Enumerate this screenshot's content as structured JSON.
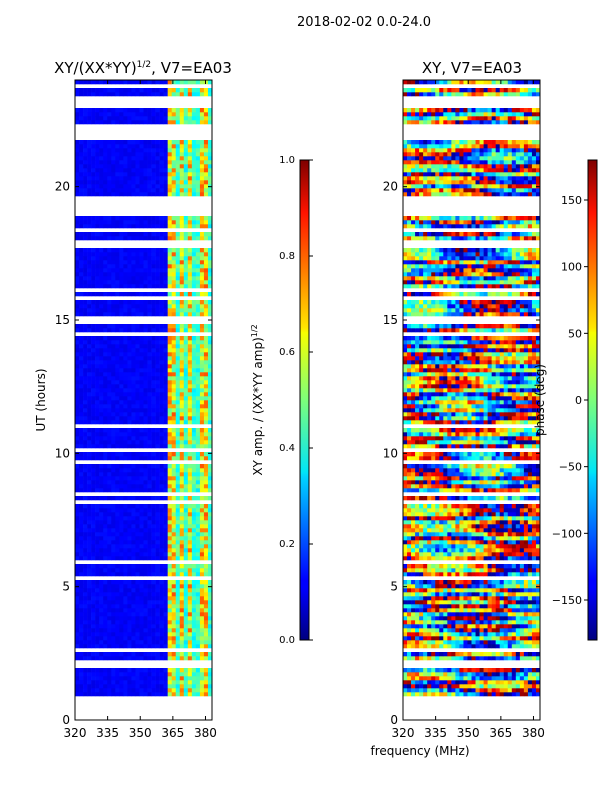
{
  "figure": {
    "suptitle": "2018-02-02 0.0-24.0",
    "xlabel": "frequency (MHz)"
  },
  "chart_data": [
    {
      "type": "heatmap",
      "title": "XY/(XX*YY)",
      "title_sup": "1/2",
      "title_tail": ", V7=EA03",
      "ylabel": "UT (hours)",
      "xlim": [
        320,
        383
      ],
      "ylim": [
        0,
        24
      ],
      "xticks": [
        320,
        335,
        350,
        365,
        380
      ],
      "yticks": [
        0,
        5,
        10,
        15,
        20
      ],
      "colorbar": {
        "label": "XY amp. / (XX*YY amp)",
        "label_sup": "1/2",
        "range": [
          0.0,
          1.0
        ],
        "ticks": [
          "0.0",
          "0.2",
          "0.4",
          "0.6",
          "0.8",
          "1.0"
        ]
      },
      "bright_bands_mhz": [
        [
          363,
          366
        ],
        [
          368,
          370
        ],
        [
          372,
          374
        ],
        [
          378,
          381
        ]
      ],
      "flagged_hours": [
        [
          0.2,
          0.45
        ],
        [
          1.9,
          2.2
        ],
        [
          18.9,
          19.6
        ],
        [
          21.8,
          22.4
        ],
        [
          23.2,
          23.4
        ]
      ]
    },
    {
      "type": "heatmap",
      "title": "XY, V7=EA03",
      "xlim": [
        320,
        383
      ],
      "ylim": [
        0,
        24
      ],
      "xticks": [
        320,
        335,
        350,
        365,
        380
      ],
      "yticks": [
        0,
        5,
        10,
        15,
        20
      ],
      "colorbar": {
        "label": "phase (deg)",
        "range": [
          -180,
          180
        ],
        "ticks": [
          "150",
          "100",
          "50",
          "0",
          "−50",
          "−100",
          "−150"
        ],
        "tick_values": [
          150,
          100,
          50,
          0,
          -50,
          -100,
          -150
        ]
      },
      "flagged_hours": [
        [
          0.2,
          0.45
        ],
        [
          1.9,
          2.2
        ],
        [
          18.9,
          19.6
        ],
        [
          21.8,
          22.4
        ],
        [
          23.2,
          23.4
        ]
      ]
    }
  ]
}
